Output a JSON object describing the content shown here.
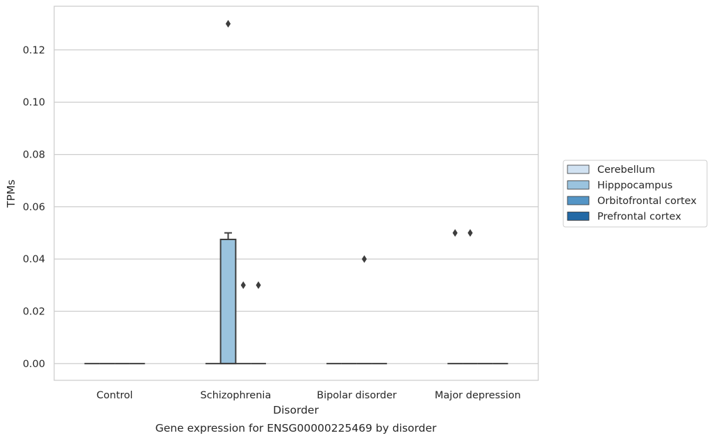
{
  "chart_data": {
    "type": "box",
    "title": "",
    "caption": "Gene expression for ENSG00000225469 by disorder",
    "xlabel": "Disorder",
    "ylabel": "TPMs",
    "ylim": [
      -0.0064,
      0.1367
    ],
    "yticks": [
      0.0,
      0.02,
      0.04,
      0.06,
      0.08,
      0.1,
      0.12
    ],
    "ytick_labels": [
      "0.00",
      "0.02",
      "0.04",
      "0.06",
      "0.08",
      "0.10",
      "0.12"
    ],
    "grid": true,
    "legend_position": "right",
    "categories": [
      "Control",
      "Schizophrenia",
      "Bipolar disorder",
      "Major depression"
    ],
    "series": [
      {
        "name": "Cerebellum",
        "color": "#d1e2f2",
        "boxes": [
          {
            "q1": 0,
            "median": 0,
            "q3": 0,
            "whisker_low": 0,
            "whisker_high": 0,
            "outliers": []
          },
          {
            "q1": 0,
            "median": 0,
            "q3": 0,
            "whisker_low": 0,
            "whisker_high": 0,
            "outliers": []
          },
          {
            "q1": 0,
            "median": 0,
            "q3": 0,
            "whisker_low": 0,
            "whisker_high": 0,
            "outliers": []
          },
          {
            "q1": 0,
            "median": 0,
            "q3": 0,
            "whisker_low": 0,
            "whisker_high": 0,
            "outliers": [
              0.05
            ]
          }
        ]
      },
      {
        "name": "Hipppocampus",
        "color": "#9ac3de",
        "boxes": [
          {
            "q1": 0,
            "median": 0,
            "q3": 0,
            "whisker_low": 0,
            "whisker_high": 0,
            "outliers": []
          },
          {
            "q1": 0,
            "median": 0,
            "q3": 0.0475,
            "whisker_low": 0,
            "whisker_high": 0.05,
            "outliers": [
              0.13
            ]
          },
          {
            "q1": 0,
            "median": 0,
            "q3": 0,
            "whisker_low": 0,
            "whisker_high": 0,
            "outliers": []
          },
          {
            "q1": 0,
            "median": 0,
            "q3": 0,
            "whisker_low": 0,
            "whisker_high": 0,
            "outliers": [
              0.05
            ]
          }
        ]
      },
      {
        "name": "Orbitofrontal cortex",
        "color": "#5495c6",
        "boxes": [
          {
            "q1": 0,
            "median": 0,
            "q3": 0,
            "whisker_low": 0,
            "whisker_high": 0,
            "outliers": []
          },
          {
            "q1": 0,
            "median": 0,
            "q3": 0,
            "whisker_low": 0,
            "whisker_high": 0,
            "outliers": [
              0.03
            ]
          },
          {
            "q1": 0,
            "median": 0,
            "q3": 0,
            "whisker_low": 0,
            "whisker_high": 0,
            "outliers": [
              0.04
            ]
          },
          {
            "q1": 0,
            "median": 0,
            "q3": 0,
            "whisker_low": 0,
            "whisker_high": 0,
            "outliers": []
          }
        ]
      },
      {
        "name": "Prefrontal cortex",
        "color": "#2369a5",
        "boxes": [
          {
            "q1": 0,
            "median": 0,
            "q3": 0,
            "whisker_low": 0,
            "whisker_high": 0,
            "outliers": []
          },
          {
            "q1": 0,
            "median": 0,
            "q3": 0,
            "whisker_low": 0,
            "whisker_high": 0,
            "outliers": [
              0.03
            ]
          },
          {
            "q1": 0,
            "median": 0,
            "q3": 0,
            "whisker_low": 0,
            "whisker_high": 0,
            "outliers": []
          },
          {
            "q1": 0,
            "median": 0,
            "q3": 0,
            "whisker_low": 0,
            "whisker_high": 0,
            "outliers": []
          }
        ]
      }
    ]
  }
}
